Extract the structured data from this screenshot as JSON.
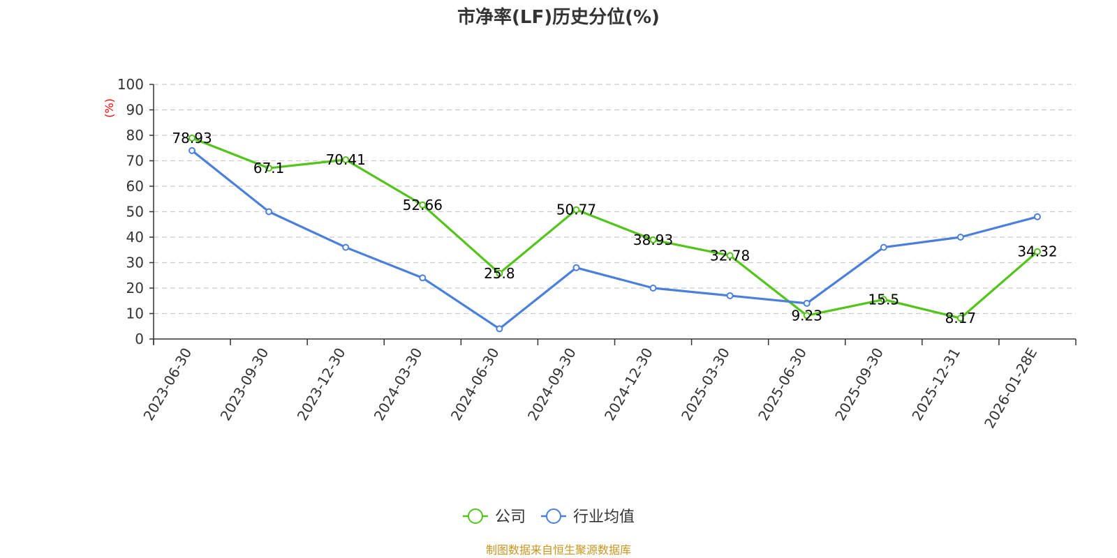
{
  "chart_data": {
    "type": "line",
    "title": "市净率(LF)历史分位(%)",
    "ylabel": "(%)",
    "xlabel": "",
    "ylim": [
      0,
      100
    ],
    "yticks": [
      0,
      10,
      20,
      30,
      40,
      50,
      60,
      70,
      80,
      90,
      100
    ],
    "grid": true,
    "legend_position": "bottom",
    "categories": [
      "2023-06-30",
      "2023-09-30",
      "2023-12-30",
      "2024-03-30",
      "2024-06-30",
      "2024-09-30",
      "2024-12-30",
      "2025-03-30",
      "2025-06-30",
      "2025-09-30",
      "2025-12-31",
      "2026-01-28E"
    ],
    "series": [
      {
        "name": "公司",
        "color": "#52c41a",
        "labeled": true,
        "values": [
          78.93,
          67.1,
          70.41,
          52.66,
          25.8,
          50.77,
          38.93,
          32.78,
          9.23,
          15.5,
          8.17,
          34.32
        ],
        "labels": [
          "78.93",
          "67.1",
          "70.41",
          "52.66",
          "25.8",
          "50.77",
          "38.93",
          "32.78",
          "9.23",
          "15.5",
          "8.17",
          "34.32"
        ]
      },
      {
        "name": "行业均值",
        "color": "#4a7fdc",
        "labeled": false,
        "values": [
          74.0,
          50.0,
          36.0,
          24.0,
          4.0,
          28.0,
          20.0,
          17.0,
          14.0,
          36.0,
          40.0,
          48.0
        ]
      }
    ]
  },
  "source": "制图数据来自恒生聚源数据库"
}
